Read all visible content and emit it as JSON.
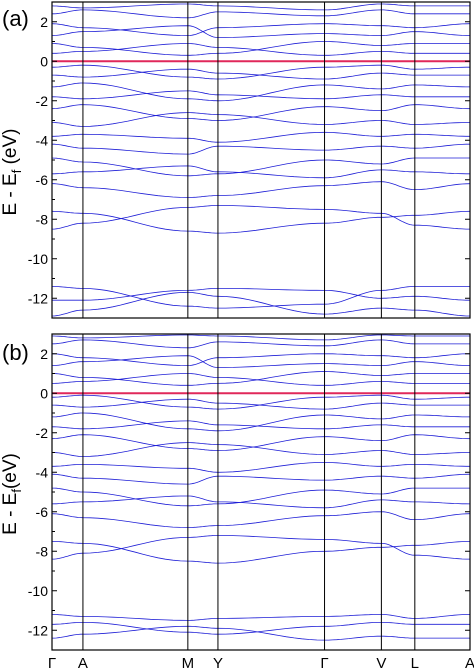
{
  "chart_data": [
    {
      "type": "line",
      "panel_label": "(a)",
      "ylabel": "E - E",
      "ylabel_sub": "f",
      "ylabel_unit": " (eV)",
      "ylim": [
        -13,
        3
      ],
      "yticks": [
        2,
        0,
        -2,
        -4,
        -6,
        -8,
        -10,
        -12
      ],
      "kpath": [
        "Γ",
        "A",
        "M",
        "Y",
        "Γ",
        "V",
        "L",
        "A"
      ],
      "kpath_pos": [
        0,
        0.074,
        0.325,
        0.397,
        0.652,
        0.788,
        0.868,
        1.0
      ],
      "show_kpath_labels": false,
      "fermi_level": 0,
      "grid": false,
      "colors": {
        "bands": "#1f1fd6",
        "fermi": "#e0285a",
        "axes": "#000000"
      },
      "series": [
        {
          "values": [
            -12.1,
            -12.1,
            -11.6,
            -11.5,
            -11.6,
            -12.0,
            -11.9,
            -12.1
          ]
        },
        {
          "values": [
            -11.4,
            -11.5,
            -12.4,
            -12.5,
            -12.3,
            -11.6,
            -11.4,
            -11.4
          ]
        },
        {
          "values": [
            -12.9,
            -12.6,
            -11.7,
            -11.9,
            -12.8,
            -12.5,
            -12.6,
            -12.9
          ]
        },
        {
          "values": [
            -7.6,
            -7.7,
            -8.6,
            -8.7,
            -8.2,
            -7.9,
            -7.8,
            -7.6
          ]
        },
        {
          "values": [
            -8.5,
            -8.2,
            -7.4,
            -7.3,
            -7.5,
            -7.7,
            -8.3,
            -8.5
          ]
        },
        {
          "values": [
            -6.2,
            -6.4,
            -6.9,
            -6.8,
            -6.3,
            -6.1,
            -6.5,
            -6.2
          ]
        },
        {
          "values": [
            -5.7,
            -5.6,
            -5.3,
            -5.6,
            -5.9,
            -5.5,
            -5.6,
            -5.7
          ]
        },
        {
          "values": [
            -4.9,
            -5.1,
            -5.8,
            -5.7,
            -5.0,
            -5.2,
            -4.9,
            -4.9
          ]
        },
        {
          "values": [
            -4.2,
            -4.4,
            -4.7,
            -4.3,
            -4.5,
            -4.3,
            -4.4,
            -4.2
          ]
        },
        {
          "values": [
            -3.8,
            -3.7,
            -3.9,
            -4.1,
            -3.6,
            -3.8,
            -3.7,
            -3.8
          ]
        },
        {
          "values": [
            -3.1,
            -3.3,
            -2.6,
            -2.7,
            -3.2,
            -3.0,
            -3.2,
            -3.1
          ]
        },
        {
          "values": [
            -2.4,
            -2.2,
            -2.9,
            -3.0,
            -2.3,
            -2.5,
            -2.2,
            -2.4
          ]
        },
        {
          "values": [
            -1.8,
            -1.9,
            -1.5,
            -1.7,
            -1.9,
            -1.7,
            -1.8,
            -1.8
          ]
        },
        {
          "values": [
            -1.3,
            -1.1,
            -1.9,
            -2.0,
            -1.2,
            -1.4,
            -1.2,
            -1.3
          ]
        },
        {
          "values": [
            -0.7,
            -0.8,
            -0.4,
            -0.6,
            -0.9,
            -0.6,
            -0.7,
            -0.7
          ]
        },
        {
          "values": [
            -0.3,
            -0.2,
            -0.8,
            -0.9,
            -0.3,
            -0.2,
            -0.4,
            -0.3
          ]
        },
        {
          "values": [
            0.4,
            0.5,
            0.9,
            0.7,
            0.3,
            0.5,
            0.4,
            0.4
          ]
        },
        {
          "values": [
            0.9,
            0.7,
            0.3,
            0.4,
            1.0,
            0.8,
            0.9,
            0.9
          ]
        },
        {
          "values": [
            1.3,
            1.5,
            1.8,
            1.2,
            1.4,
            1.3,
            1.5,
            1.3
          ]
        },
        {
          "values": [
            1.9,
            1.7,
            1.3,
            1.7,
            1.9,
            1.8,
            1.7,
            1.9
          ]
        },
        {
          "values": [
            2.4,
            2.6,
            2.2,
            2.5,
            2.3,
            2.6,
            2.4,
            2.4
          ]
        },
        {
          "values": [
            2.8,
            2.7,
            2.9,
            2.8,
            2.6,
            2.9,
            2.8,
            2.8
          ]
        }
      ]
    },
    {
      "type": "line",
      "panel_label": "(b)",
      "ylabel": "E - E",
      "ylabel_sub": "f",
      "ylabel_unit": "(eV)",
      "ylim": [
        -13,
        3
      ],
      "yticks": [
        2,
        0,
        -2,
        -4,
        -6,
        -8,
        -10,
        -12
      ],
      "kpath": [
        "Γ",
        "A",
        "M",
        "Y",
        "Γ",
        "V",
        "L",
        "A"
      ],
      "kpath_pos": [
        0,
        0.074,
        0.325,
        0.397,
        0.652,
        0.788,
        0.868,
        1.0
      ],
      "show_kpath_labels": true,
      "fermi_level": 0,
      "grid": false,
      "colors": {
        "bands": "#1f1fd6",
        "fermi": "#e0285a",
        "axes": "#000000"
      },
      "series": [
        {
          "values": [
            -11.2,
            -11.3,
            -11.5,
            -11.4,
            -11.3,
            -11.2,
            -11.4,
            -11.2
          ]
        },
        {
          "values": [
            -11.7,
            -11.6,
            -12.1,
            -12.2,
            -11.8,
            -11.6,
            -11.7,
            -11.7
          ]
        },
        {
          "values": [
            -12.4,
            -12.2,
            -11.8,
            -11.9,
            -12.5,
            -12.3,
            -12.4,
            -12.4
          ]
        },
        {
          "values": [
            -7.5,
            -7.6,
            -8.5,
            -8.6,
            -8.0,
            -7.8,
            -7.7,
            -7.5
          ]
        },
        {
          "values": [
            -8.4,
            -8.1,
            -7.3,
            -7.2,
            -7.4,
            -7.6,
            -8.2,
            -8.4
          ]
        },
        {
          "values": [
            -6.1,
            -6.3,
            -6.8,
            -6.7,
            -6.2,
            -6.0,
            -6.4,
            -6.1
          ]
        },
        {
          "values": [
            -5.6,
            -5.5,
            -5.2,
            -5.5,
            -5.8,
            -5.4,
            -5.5,
            -5.6
          ]
        },
        {
          "values": [
            -4.8,
            -5.0,
            -5.7,
            -5.6,
            -4.9,
            -5.1,
            -4.8,
            -4.8
          ]
        },
        {
          "values": [
            -4.1,
            -4.3,
            -4.6,
            -4.2,
            -4.4,
            -4.2,
            -4.3,
            -4.1
          ]
        },
        {
          "values": [
            -3.7,
            -3.6,
            -3.8,
            -4.0,
            -3.5,
            -3.7,
            -3.6,
            -3.7
          ]
        },
        {
          "values": [
            -3.0,
            -3.2,
            -2.5,
            -2.6,
            -3.1,
            -2.9,
            -3.1,
            -3.0
          ]
        },
        {
          "values": [
            -2.3,
            -2.1,
            -2.8,
            -2.9,
            -2.2,
            -2.4,
            -2.1,
            -2.3
          ]
        },
        {
          "values": [
            -1.7,
            -1.8,
            -1.4,
            -1.6,
            -1.8,
            -1.6,
            -1.7,
            -1.7
          ]
        },
        {
          "values": [
            -1.2,
            -1.0,
            -1.8,
            -1.9,
            -1.1,
            -1.3,
            -1.1,
            -1.2
          ]
        },
        {
          "values": [
            -0.6,
            -0.7,
            -0.3,
            -0.5,
            -0.8,
            -0.5,
            -0.6,
            -0.6
          ]
        },
        {
          "values": [
            -0.2,
            -0.1,
            -0.7,
            -0.8,
            -0.2,
            -0.1,
            -0.3,
            -0.2
          ]
        },
        {
          "values": [
            0.5,
            0.6,
            1.0,
            0.8,
            0.4,
            0.6,
            0.5,
            0.5
          ]
        },
        {
          "values": [
            1.0,
            0.8,
            0.4,
            0.5,
            1.1,
            0.9,
            1.0,
            1.0
          ]
        },
        {
          "values": [
            1.4,
            1.6,
            1.9,
            1.3,
            1.5,
            1.4,
            1.6,
            1.4
          ]
        },
        {
          "values": [
            2.0,
            1.8,
            1.4,
            1.8,
            2.0,
            1.9,
            1.8,
            2.0
          ]
        },
        {
          "values": [
            2.5,
            2.7,
            2.3,
            2.6,
            2.4,
            2.7,
            2.5,
            2.5
          ]
        },
        {
          "values": [
            2.9,
            2.8,
            2.95,
            2.9,
            2.7,
            2.95,
            2.9,
            2.9
          ]
        }
      ]
    }
  ]
}
